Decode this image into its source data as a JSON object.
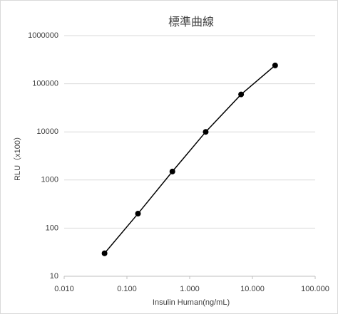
{
  "chart_data": {
    "type": "line",
    "title": "標準曲線",
    "x_label": "Insulin Human(ng/mL)",
    "y_label": "RLU（x100）",
    "x": [
      0.044,
      0.15,
      0.53,
      1.8,
      6.6,
      23
    ],
    "values": [
      30,
      200,
      1500,
      10000,
      60000,
      240000
    ],
    "color": "#000000",
    "xscale": "log",
    "yscale": "log",
    "xlim": [
      0.01,
      100
    ],
    "ylim": [
      10,
      1000000
    ],
    "xticks": [
      {
        "value": 0.01,
        "label": "0.010"
      },
      {
        "value": 0.1,
        "label": "0.100"
      },
      {
        "value": 1,
        "label": "1.000"
      },
      {
        "value": 10,
        "label": "10.000"
      },
      {
        "value": 100,
        "label": "100.000"
      }
    ],
    "yticks": [
      10,
      100,
      1000,
      10000,
      100000,
      1000000
    ],
    "grid": true
  }
}
